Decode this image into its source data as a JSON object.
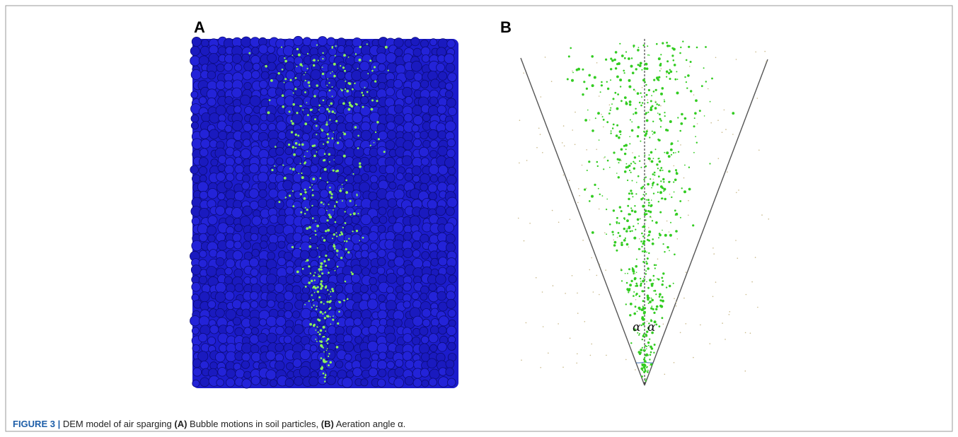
{
  "figure": {
    "panels": [
      {
        "label": "A"
      },
      {
        "label": "B",
        "angle_labels": [
          "α",
          "α"
        ]
      }
    ],
    "caption": {
      "label": "FIGURE 3 |",
      "text": "DEM model of air sparging",
      "parts": [
        {
          "label": "(A)",
          "text": "Bubble motions in soil particles,"
        },
        {
          "label": "(B)",
          "text": "Aeration angle α."
        }
      ]
    }
  }
}
